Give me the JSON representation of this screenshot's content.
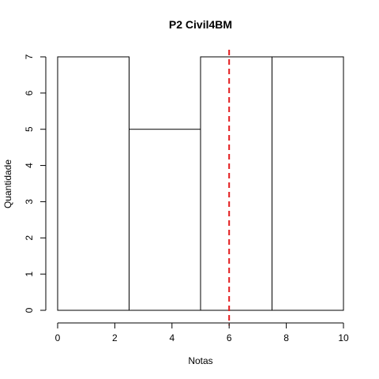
{
  "chart_data": {
    "type": "bar",
    "title": "P2 Civil4BM",
    "xlabel": "Notas",
    "ylabel": "Quantidade",
    "bins": [
      [
        0,
        2.5
      ],
      [
        2.5,
        5
      ],
      [
        5,
        7.5
      ],
      [
        7.5,
        10
      ]
    ],
    "values": [
      7,
      5,
      7,
      7
    ],
    "xlim": [
      0,
      10
    ],
    "ylim": [
      0,
      7
    ],
    "xticks": [
      0,
      2,
      4,
      6,
      8,
      10
    ],
    "yticks": [
      0,
      1,
      2,
      3,
      4,
      5,
      6,
      7
    ],
    "bar_fill": "#ffffff",
    "bar_stroke": "#000000",
    "reference_line": {
      "x": 6,
      "color": "#e31a1c",
      "style": "dashed"
    },
    "grid": false,
    "legend": "none"
  }
}
